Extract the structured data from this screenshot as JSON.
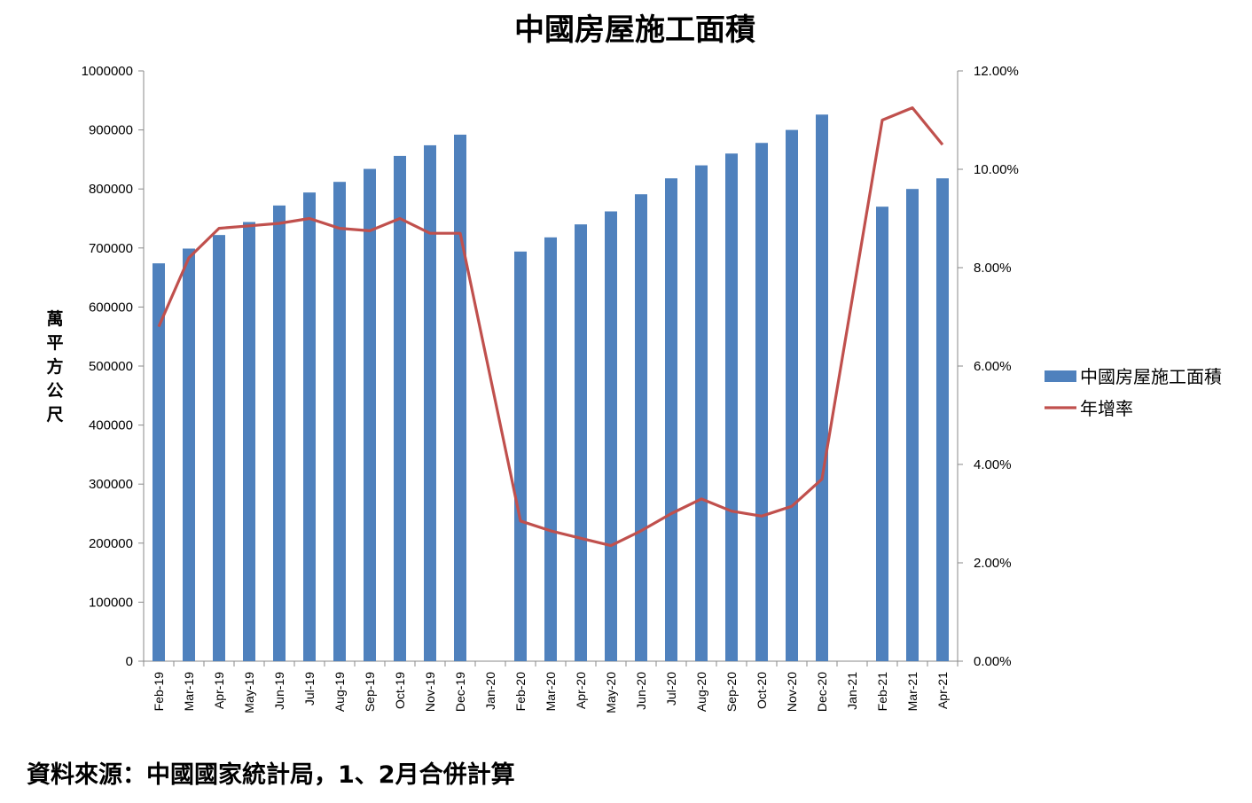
{
  "chart_data": {
    "type": "bar",
    "title": "中國房屋施工面積",
    "ylabel": "萬平方公尺",
    "y2label": "",
    "categories": [
      "Feb-19",
      "Mar-19",
      "Apr-19",
      "May-19",
      "Jun-19",
      "Jul-19",
      "Aug-19",
      "Sep-19",
      "Oct-19",
      "Nov-19",
      "Dec-19",
      "Jan-20",
      "Feb-20",
      "Mar-20",
      "Apr-20",
      "May-20",
      "Jun-20",
      "Jul-20",
      "Aug-20",
      "Sep-20",
      "Oct-20",
      "Nov-20",
      "Dec-20",
      "Jan-21",
      "Feb-21",
      "Mar-21",
      "Apr-21"
    ],
    "ylim": [
      0,
      1000000
    ],
    "y2lim": [
      0,
      12
    ],
    "yticks": [
      "0",
      "100000",
      "200000",
      "300000",
      "400000",
      "500000",
      "600000",
      "700000",
      "800000",
      "900000",
      "1000000"
    ],
    "y2ticks": [
      "0.00%",
      "2.00%",
      "4.00%",
      "6.00%",
      "8.00%",
      "10.00%",
      "12.00%"
    ],
    "series": [
      {
        "name": "中國房屋施工面積",
        "kind": "bar",
        "axis": "left",
        "color": "#4F81BD",
        "values": [
          674000,
          699000,
          722000,
          744000,
          772000,
          794000,
          812000,
          834000,
          856000,
          874000,
          892000,
          null,
          694000,
          718000,
          740000,
          762000,
          791000,
          818000,
          840000,
          860000,
          878000,
          900000,
          926000,
          null,
          770000,
          800000,
          818000
        ]
      },
      {
        "name": "年增率",
        "kind": "line",
        "axis": "right",
        "color": "#C0504D",
        "values": [
          6.8,
          8.2,
          8.8,
          8.85,
          8.9,
          9.0,
          8.8,
          8.75,
          9.0,
          8.7,
          8.7,
          null,
          2.85,
          2.65,
          2.5,
          2.35,
          2.65,
          3.0,
          3.3,
          3.05,
          2.95,
          3.15,
          3.7,
          null,
          11.0,
          11.25,
          10.5
        ]
      }
    ],
    "legend": "right",
    "grid": false
  },
  "source_note": "資料來源：中國國家統計局，1、2月合併計算"
}
